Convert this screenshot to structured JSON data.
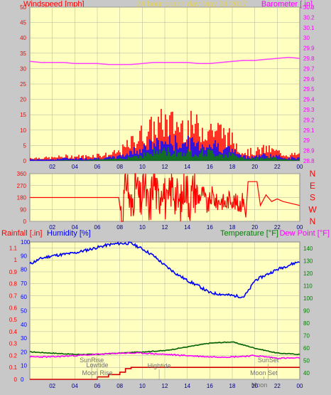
{
  "header": {
    "left_label": "Windspeed [mph]",
    "center_label": "24 hour graph day   May 24 2017",
    "right_label": "Barometer [.in]"
  },
  "bottom_header": {
    "rainfall_label": "Rainfall [.in]",
    "humidity_label": "Humidity [%]",
    "temperature_label": "Temperature [°F]",
    "dewpoint_label": "Dew Point [°F]"
  },
  "colors": {
    "plot_bg": "#ffffc0",
    "frame_bg": "#c8c8c8",
    "wind_gust": "#ff0000",
    "wind_avg": "#0000ff",
    "wind_low": "#008000",
    "barometer": "#ff40ff",
    "direction": "#ff0000",
    "humidity": "#0000ff",
    "temperature": "#006000",
    "dewpoint": "#ff00ff",
    "rainfall": "#d00000",
    "left_axis": "#ff0000",
    "right_axis_baro": "#ff00ff",
    "right_axis_temp": "#008000"
  },
  "chart_data": [
    {
      "type": "bar",
      "name": "wind-speed-panel",
      "x_ticks": [
        "02",
        "04",
        "06",
        "08",
        "10",
        "12",
        "14",
        "16",
        "18",
        "20",
        "22",
        "00"
      ],
      "y_left_ticks": [
        "0",
        "5",
        "10",
        "15",
        "20",
        "25",
        "30",
        "35",
        "40",
        "45",
        "50"
      ],
      "ylim_left": [
        0,
        50
      ],
      "y_right_ticks": [
        "28.8",
        "28.9",
        "29",
        "29.1",
        "29.2",
        "29.3",
        "29.4",
        "29.5",
        "29.6",
        "29.7",
        "29.8",
        "29.9",
        "30",
        "30.1",
        "30.2",
        "30.3"
      ],
      "ylim_right": [
        28.8,
        30.3
      ],
      "wind_profile_hours": [
        0,
        1,
        2,
        3,
        4,
        5,
        6,
        7,
        8,
        9,
        10,
        11,
        12,
        13,
        14,
        15,
        16,
        17,
        18,
        19,
        20,
        21,
        22,
        23,
        24
      ],
      "wind_gust_profile": [
        1,
        1,
        1,
        1.5,
        1.5,
        1.5,
        2,
        2,
        3,
        6,
        9,
        11,
        13,
        12,
        12,
        11,
        11,
        10,
        7,
        3,
        3,
        4,
        3,
        2,
        2
      ],
      "wind_avg_profile": [
        0.5,
        0.5,
        0.5,
        0.8,
        0.8,
        0.8,
        1,
        1,
        1.5,
        3,
        4.5,
        5.5,
        6.5,
        6,
        6,
        5.5,
        5.5,
        5,
        3.5,
        1.5,
        1.5,
        2,
        1.5,
        1,
        1
      ],
      "wind_low_profile": [
        0,
        0,
        0,
        0.2,
        0.2,
        0.2,
        0.5,
        0.5,
        0.8,
        1.5,
        2,
        3,
        3.5,
        3,
        3,
        3,
        3,
        2.5,
        2,
        1,
        1,
        1,
        1,
        0.5,
        0.5
      ],
      "barometer": {
        "x": [
          0,
          1,
          2,
          3,
          4,
          5,
          6,
          7,
          8,
          9,
          10,
          11,
          12,
          13,
          14,
          15,
          16,
          17,
          18,
          19,
          20,
          21,
          22,
          23,
          24
        ],
        "y": [
          29.77,
          29.76,
          29.76,
          29.76,
          29.75,
          29.75,
          29.75,
          29.74,
          29.74,
          29.74,
          29.75,
          29.76,
          29.76,
          29.76,
          29.76,
          29.75,
          29.75,
          29.76,
          29.77,
          29.78,
          29.78,
          29.79,
          29.8,
          29.81,
          29.8
        ]
      }
    },
    {
      "type": "line",
      "name": "wind-direction-panel",
      "x_ticks": [
        "02",
        "04",
        "06",
        "08",
        "10",
        "12",
        "14",
        "16",
        "18",
        "20",
        "22",
        "00"
      ],
      "y_ticks": [
        "0",
        "90",
        "180",
        "270",
        "360"
      ],
      "ylim": [
        0,
        360
      ],
      "compass_labels": [
        "N",
        "W",
        "S",
        "E",
        "N"
      ],
      "series": [
        {
          "x": [
            0,
            7.9,
            8.2,
            8.6,
            9.0,
            9.4,
            9.8,
            10.2,
            10.6,
            11.0,
            11.4,
            11.8,
            12.2,
            12.6,
            13.0,
            13.4,
            13.8,
            14.2,
            14.6,
            15.0,
            15.4,
            15.8,
            16.2,
            16.6,
            17.0,
            17.4,
            17.8,
            18.2,
            18.6,
            19.0,
            19.2,
            19.4,
            19.6,
            19.8,
            20.2,
            20.5,
            21.0,
            21.5,
            22.0,
            22.5,
            23.0,
            23.5,
            24.0
          ],
          "y": [
            180,
            180,
            20,
            350,
            60,
            330,
            120,
            290,
            40,
            350,
            150,
            310,
            80,
            280,
            200,
            100,
            300,
            150,
            250,
            180,
            220,
            100,
            200,
            140,
            160,
            130,
            180,
            150,
            120,
            170,
            30,
            300,
            300,
            300,
            300,
            120,
            200,
            150,
            170,
            150,
            140,
            130,
            120
          ]
        }
      ]
    },
    {
      "type": "line",
      "name": "temperature-humidity-panel",
      "x_ticks": [
        "02",
        "04",
        "06",
        "08",
        "10",
        "12",
        "14",
        "16",
        "18",
        "20",
        "22",
        "00"
      ],
      "y_left_ticks": [
        "0",
        "0.1",
        "0.2",
        "0.3",
        "0.4",
        "0.5",
        "0.6",
        "0.7",
        "0.8",
        "0.9",
        "1",
        "1.1"
      ],
      "ylim_left_rain": [
        0,
        1.15
      ],
      "y_humidity_ticks": [
        "0",
        "10",
        "20",
        "30",
        "40",
        "50",
        "60",
        "70",
        "80",
        "90",
        "100"
      ],
      "ylim_humidity": [
        0,
        100
      ],
      "y_right_ticks": [
        "40",
        "50",
        "60",
        "70",
        "80",
        "90",
        "100",
        "110",
        "120",
        "130",
        "140"
      ],
      "ylim_right_temp": [
        35,
        145
      ],
      "humidity": {
        "x": [
          0,
          1,
          2,
          3,
          4,
          5,
          6,
          7,
          8,
          9,
          10,
          11,
          12,
          13,
          14,
          15,
          16,
          17,
          18,
          19,
          19.5,
          20,
          21,
          22,
          23,
          24
        ],
        "y": [
          84,
          88,
          90,
          91,
          92,
          94,
          96,
          98,
          99,
          99,
          95,
          90,
          83,
          77,
          72,
          68,
          63,
          62,
          61,
          60,
          65,
          72,
          76,
          80,
          83,
          86
        ]
      },
      "temperature": {
        "x": [
          0,
          2,
          4,
          6,
          8,
          10,
          12,
          14,
          16,
          18,
          20,
          22,
          24
        ],
        "y": [
          57,
          56,
          55,
          55,
          56,
          57,
          58,
          61,
          64,
          65,
          60,
          56,
          55
        ]
      },
      "dewpoint": {
        "x": [
          0,
          2,
          4,
          6,
          8,
          10,
          12,
          14,
          16,
          18,
          20,
          22,
          24
        ],
        "y": [
          53,
          53,
          54,
          55,
          56,
          56,
          55,
          54,
          53,
          53,
          54,
          52,
          52
        ]
      },
      "rainfall": {
        "x": [
          0,
          5.5,
          6.0,
          7.0,
          8.0,
          8.5,
          9.0,
          24.0
        ],
        "y": [
          0,
          0,
          0.02,
          0.04,
          0.06,
          0.09,
          0.1,
          0.1
        ]
      },
      "annotations": [
        {
          "label": "SunRise",
          "x": 5.5,
          "position": "upper"
        },
        {
          "label": "Lowtide",
          "x": 6.0,
          "position": "upper"
        },
        {
          "label": "Moon Rise",
          "x": 6.0,
          "position": "lower"
        },
        {
          "label": "Hightide",
          "x": 11.5,
          "position": "middle"
        },
        {
          "label": "SunSet",
          "x": 21.2,
          "position": "upper"
        },
        {
          "label": "Moon Set",
          "x": 20.8,
          "position": "lower"
        },
        {
          "label": "Moon",
          "x": 20.4,
          "position": "bottom"
        }
      ]
    }
  ]
}
